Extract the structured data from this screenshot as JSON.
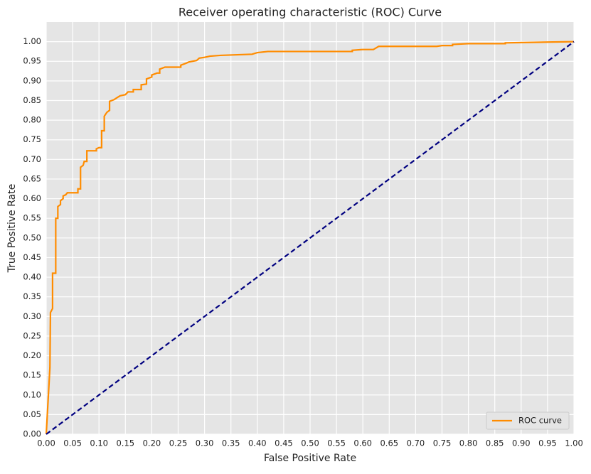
{
  "chart_data": {
    "type": "line",
    "title": "Receiver operating characteristic (ROC) Curve",
    "x_label": "False Positive Rate",
    "y_label": "True Positive Rate",
    "xlim": [
      0,
      1
    ],
    "ylim": [
      0,
      1.05
    ],
    "grid": true,
    "legend": "lower right",
    "xticks": [
      {
        "value": 0,
        "label": "0.00"
      },
      {
        "value": 0.05,
        "label": "0.05"
      },
      {
        "value": 0.1,
        "label": "0.10"
      },
      {
        "value": 0.15,
        "label": "0.15"
      },
      {
        "value": 0.2,
        "label": "0.20"
      },
      {
        "value": 0.25,
        "label": "0.25"
      },
      {
        "value": 0.3,
        "label": "0.30"
      },
      {
        "value": 0.35,
        "label": "0.35"
      },
      {
        "value": 0.4,
        "label": "0.40"
      },
      {
        "value": 0.45,
        "label": "0.45"
      },
      {
        "value": 0.5,
        "label": "0.50"
      },
      {
        "value": 0.55,
        "label": "0.55"
      },
      {
        "value": 0.6,
        "label": "0.60"
      },
      {
        "value": 0.65,
        "label": "0.65"
      },
      {
        "value": 0.7,
        "label": "0.70"
      },
      {
        "value": 0.75,
        "label": "0.75"
      },
      {
        "value": 0.8,
        "label": "0.80"
      },
      {
        "value": 0.85,
        "label": "0.85"
      },
      {
        "value": 0.9,
        "label": "0.90"
      },
      {
        "value": 0.95,
        "label": "0.95"
      },
      {
        "value": 1,
        "label": "1.00"
      }
    ],
    "yticks": [
      {
        "value": 0,
        "label": "0.00"
      },
      {
        "value": 0.05,
        "label": "0.05"
      },
      {
        "value": 0.1,
        "label": "0.10"
      },
      {
        "value": 0.15,
        "label": "0.15"
      },
      {
        "value": 0.2,
        "label": "0.20"
      },
      {
        "value": 0.25,
        "label": "0.25"
      },
      {
        "value": 0.3,
        "label": "0.30"
      },
      {
        "value": 0.35,
        "label": "0.35"
      },
      {
        "value": 0.4,
        "label": "0.40"
      },
      {
        "value": 0.45,
        "label": "0.45"
      },
      {
        "value": 0.5,
        "label": "0.50"
      },
      {
        "value": 0.55,
        "label": "0.55"
      },
      {
        "value": 0.6,
        "label": "0.60"
      },
      {
        "value": 0.65,
        "label": "0.65"
      },
      {
        "value": 0.7,
        "label": "0.70"
      },
      {
        "value": 0.75,
        "label": "0.75"
      },
      {
        "value": 0.8,
        "label": "0.80"
      },
      {
        "value": 0.85,
        "label": "0.85"
      },
      {
        "value": 0.9,
        "label": "0.90"
      },
      {
        "value": 0.95,
        "label": "0.95"
      },
      {
        "value": 1,
        "label": "1.00"
      }
    ],
    "series": [
      {
        "name": "ROC curve",
        "color": "#ff8c00",
        "dash": "solid",
        "x": [
          0,
          0.007,
          0.008,
          0.012,
          0.012,
          0.018,
          0.018,
          0.022,
          0.022,
          0.027,
          0.027,
          0.032,
          0.032,
          0.037,
          0.04,
          0.06,
          0.06,
          0.065,
          0.065,
          0.07,
          0.072,
          0.077,
          0.077,
          0.095,
          0.095,
          0.1,
          0.105,
          0.105,
          0.11,
          0.11,
          0.115,
          0.12,
          0.12,
          0.128,
          0.135,
          0.14,
          0.15,
          0.155,
          0.165,
          0.165,
          0.18,
          0.18,
          0.19,
          0.19,
          0.2,
          0.2,
          0.21,
          0.215,
          0.215,
          0.225,
          0.255,
          0.255,
          0.265,
          0.27,
          0.285,
          0.29,
          0.3,
          0.31,
          0.33,
          0.39,
          0.395,
          0.4,
          0.42,
          0.58,
          0.58,
          0.6,
          0.62,
          0.63,
          0.74,
          0.75,
          0.77,
          0.77,
          0.8,
          0.87,
          0.87,
          1
        ],
        "values": [
          0,
          0.17,
          0.31,
          0.32,
          0.41,
          0.41,
          0.55,
          0.55,
          0.58,
          0.585,
          0.595,
          0.6,
          0.607,
          0.61,
          0.615,
          0.615,
          0.625,
          0.625,
          0.68,
          0.685,
          0.695,
          0.695,
          0.722,
          0.722,
          0.727,
          0.73,
          0.73,
          0.773,
          0.773,
          0.81,
          0.82,
          0.825,
          0.848,
          0.852,
          0.858,
          0.862,
          0.865,
          0.872,
          0.872,
          0.878,
          0.878,
          0.89,
          0.892,
          0.905,
          0.91,
          0.915,
          0.92,
          0.92,
          0.93,
          0.935,
          0.935,
          0.94,
          0.945,
          0.948,
          0.952,
          0.958,
          0.96,
          0.963,
          0.965,
          0.968,
          0.97,
          0.972,
          0.975,
          0.975,
          0.978,
          0.98,
          0.98,
          0.988,
          0.988,
          0.99,
          0.99,
          0.993,
          0.995,
          0.995,
          0.997,
          1
        ]
      },
      {
        "color": "#000080",
        "dash": "dashed",
        "x": [
          0,
          1
        ],
        "values": [
          0,
          1
        ]
      }
    ]
  }
}
